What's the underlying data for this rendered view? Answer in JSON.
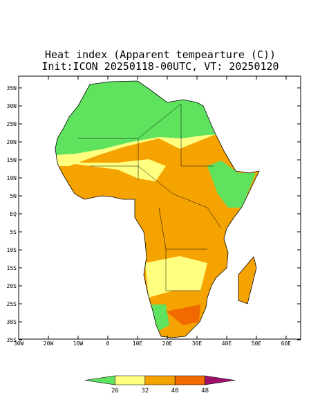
{
  "map": {
    "title": "Heat index (Apparent tempearture (C))",
    "subtitle": "Init:ICON 20250118-00UTC, VT: 20250120",
    "lat_ticks": [
      {
        "value": 35,
        "label": "35N"
      },
      {
        "value": 30,
        "label": "30N"
      },
      {
        "value": 25,
        "label": "25N"
      },
      {
        "value": 20,
        "label": "20N"
      },
      {
        "value": 15,
        "label": "15N"
      },
      {
        "value": 10,
        "label": "10N"
      },
      {
        "value": 5,
        "label": "5N"
      },
      {
        "value": 0,
        "label": "EQ"
      },
      {
        "value": -5,
        "label": "5S"
      },
      {
        "value": -10,
        "label": "10S"
      },
      {
        "value": -15,
        "label": "15S"
      },
      {
        "value": -20,
        "label": "20S"
      },
      {
        "value": -25,
        "label": "25S"
      },
      {
        "value": -30,
        "label": "30S"
      },
      {
        "value": -35,
        "label": "35S"
      }
    ],
    "lon_ticks": [
      {
        "value": -30,
        "label": "30W"
      },
      {
        "value": -20,
        "label": "20W"
      },
      {
        "value": -10,
        "label": "10W"
      },
      0,
      {
        "value": 10,
        "label": "10E"
      },
      {
        "value": 20,
        "label": "20E"
      },
      {
        "value": 30,
        "label": "30E"
      },
      {
        "value": 40,
        "label": "40E"
      },
      {
        "value": 50,
        "label": "50E"
      },
      {
        "value": 60,
        "label": "60E"
      }
    ],
    "colorbar": {
      "levels": [
        26,
        32,
        40,
        48
      ],
      "colors": [
        "#5fe35f",
        "#ffff80",
        "#f5a300",
        "#f06a00",
        "#a0106a"
      ]
    }
  }
}
